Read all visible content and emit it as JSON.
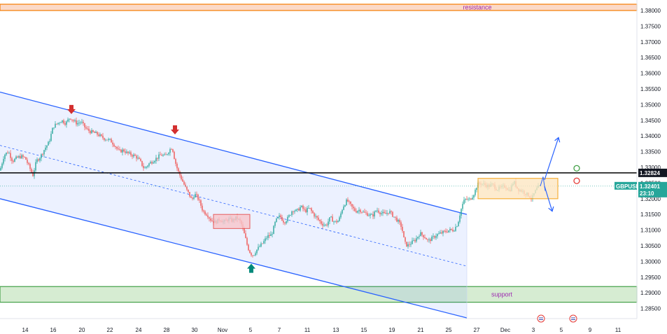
{
  "chart_data": {
    "type": "candlestick",
    "symbol": "GBPUSD",
    "ylim": [
      1.2835,
      1.3815
    ],
    "y_ticks": [
      "1.38000",
      "1.37500",
      "1.37000",
      "1.36500",
      "1.36000",
      "1.35500",
      "1.35000",
      "1.34500",
      "1.34000",
      "1.33500",
      "1.33000",
      "1.32500",
      "1.32000",
      "1.31500",
      "1.31000",
      "1.30500",
      "1.30000",
      "1.29500",
      "1.29000",
      "1.28500"
    ],
    "x_ticks": [
      "14",
      "16",
      "20",
      "22",
      "24",
      "28",
      "30",
      "Nov",
      "5",
      "7",
      "11",
      "13",
      "15",
      "19",
      "21",
      "25",
      "27",
      "Dec",
      "3",
      "5",
      "9",
      "11"
    ],
    "price_points": [
      [
        0,
        1.329
      ],
      [
        6,
        1.334
      ],
      [
        12,
        1.335
      ],
      [
        18,
        1.332
      ],
      [
        24,
        1.333
      ],
      [
        30,
        1.3335
      ],
      [
        36,
        1.333
      ],
      [
        42,
        1.33
      ],
      [
        47,
        1.3275
      ],
      [
        52,
        1.332
      ],
      [
        58,
        1.3335
      ],
      [
        64,
        1.336
      ],
      [
        70,
        1.338
      ],
      [
        76,
        1.343
      ],
      [
        82,
        1.344
      ],
      [
        88,
        1.345
      ],
      [
        94,
        1.344
      ],
      [
        100,
        1.346
      ],
      [
        104,
        1.345
      ],
      [
        110,
        1.344
      ],
      [
        116,
        1.3445
      ],
      [
        122,
        1.3425
      ],
      [
        128,
        1.3415
      ],
      [
        134,
        1.341
      ],
      [
        140,
        1.3405
      ],
      [
        146,
        1.3395
      ],
      [
        152,
        1.339
      ],
      [
        158,
        1.3385
      ],
      [
        164,
        1.337
      ],
      [
        170,
        1.335
      ],
      [
        176,
        1.3355
      ],
      [
        182,
        1.3345
      ],
      [
        188,
        1.334
      ],
      [
        194,
        1.3335
      ],
      [
        200,
        1.332
      ],
      [
        206,
        1.3295
      ],
      [
        212,
        1.331
      ],
      [
        218,
        1.332
      ],
      [
        224,
        1.333
      ],
      [
        230,
        1.334
      ],
      [
        236,
        1.3335
      ],
      [
        242,
        1.3355
      ],
      [
        246,
        1.3365
      ],
      [
        250,
        1.332
      ],
      [
        254,
        1.329
      ],
      [
        258,
        1.327
      ],
      [
        262,
        1.325
      ],
      [
        266,
        1.323
      ],
      [
        270,
        1.3215
      ],
      [
        274,
        1.3195
      ],
      [
        278,
        1.3215
      ],
      [
        282,
        1.3205
      ],
      [
        286,
        1.3185
      ],
      [
        290,
        1.316
      ],
      [
        296,
        1.315
      ],
      [
        302,
        1.313
      ],
      [
        308,
        1.3125
      ],
      [
        314,
        1.3135
      ],
      [
        320,
        1.3125
      ],
      [
        326,
        1.3135
      ],
      [
        332,
        1.313
      ],
      [
        338,
        1.314
      ],
      [
        344,
        1.3125
      ],
      [
        350,
        1.308
      ],
      [
        354,
        1.3045
      ],
      [
        358,
        1.3025
      ],
      [
        362,
        1.302
      ],
      [
        366,
        1.3035
      ],
      [
        370,
        1.3045
      ],
      [
        376,
        1.306
      ],
      [
        382,
        1.308
      ],
      [
        388,
        1.3085
      ],
      [
        394,
        1.313
      ],
      [
        400,
        1.3145
      ],
      [
        406,
        1.3125
      ],
      [
        412,
        1.314
      ],
      [
        418,
        1.3165
      ],
      [
        424,
        1.316
      ],
      [
        430,
        1.3175
      ],
      [
        436,
        1.316
      ],
      [
        442,
        1.317
      ],
      [
        448,
        1.315
      ],
      [
        454,
        1.3135
      ],
      [
        460,
        1.312
      ],
      [
        466,
        1.3115
      ],
      [
        472,
        1.314
      ],
      [
        478,
        1.3125
      ],
      [
        484,
        1.313
      ],
      [
        490,
        1.3175
      ],
      [
        496,
        1.3195
      ],
      [
        502,
        1.3175
      ],
      [
        508,
        1.316
      ],
      [
        514,
        1.3165
      ],
      [
        520,
        1.3155
      ],
      [
        526,
        1.315
      ],
      [
        532,
        1.3145
      ],
      [
        538,
        1.3165
      ],
      [
        544,
        1.3155
      ],
      [
        550,
        1.315
      ],
      [
        556,
        1.316
      ],
      [
        562,
        1.3145
      ],
      [
        568,
        1.313
      ],
      [
        574,
        1.311
      ],
      [
        578,
        1.306
      ],
      [
        582,
        1.305
      ],
      [
        588,
        1.306
      ],
      [
        594,
        1.307
      ],
      [
        600,
        1.309
      ],
      [
        606,
        1.308
      ],
      [
        612,
        1.3065
      ],
      [
        618,
        1.3075
      ],
      [
        624,
        1.3085
      ],
      [
        630,
        1.309
      ],
      [
        636,
        1.3095
      ],
      [
        642,
        1.31
      ],
      [
        648,
        1.31
      ],
      [
        654,
        1.312
      ],
      [
        658,
        1.316
      ],
      [
        662,
        1.319
      ],
      [
        666,
        1.32
      ],
      [
        670,
        1.3195
      ],
      [
        674,
        1.3205
      ],
      [
        678,
        1.322
      ],
      [
        682,
        1.3245
      ],
      [
        686,
        1.325
      ],
      [
        692,
        1.3245
      ],
      [
        698,
        1.324
      ],
      [
        704,
        1.3245
      ],
      [
        710,
        1.323
      ],
      [
        716,
        1.3235
      ],
      [
        722,
        1.324
      ],
      [
        728,
        1.3225
      ],
      [
        734,
        1.3255
      ],
      [
        740,
        1.323
      ],
      [
        746,
        1.3225
      ],
      [
        752,
        1.3215
      ],
      [
        756,
        1.321
      ],
      [
        760,
        1.32
      ],
      [
        764,
        1.322
      ],
      [
        768,
        1.3235
      ],
      [
        772,
        1.324
      ]
    ],
    "channel": {
      "upper": [
        [
          0,
          1.354
        ],
        [
          667,
          1.315
        ]
      ],
      "lower": [
        [
          0,
          1.32
        ],
        [
          667,
          1.282
        ]
      ],
      "mid": [
        [
          0,
          1.337
        ],
        [
          667,
          1.2985
        ]
      ]
    },
    "zones": [
      {
        "label": "resistance",
        "from": 1.38,
        "to": 1.382,
        "fill": "#fbd9c8",
        "border": "#f57c00",
        "text": "#9c27b0"
      },
      {
        "label": "support",
        "from": 1.287,
        "to": 1.292,
        "fill": "#d6ecd2",
        "border": "#43a047",
        "text": "#9c27b0"
      }
    ],
    "boxes": [
      {
        "name": "red-consolidation-box",
        "y_range": [
          1.3105,
          1.315
        ],
        "fill": "#f8c6cb",
        "border": "#e53935"
      },
      {
        "name": "orange-range-box",
        "y_range": [
          1.32,
          1.3265
        ],
        "fill": "#fde7c2",
        "border": "#f59e0b"
      }
    ],
    "levels": [
      {
        "value": 1.32824,
        "label": "1.32824",
        "color": "#000000"
      },
      {
        "value": 1.32401,
        "label": "1.32401",
        "sublabel": "23:10",
        "symbol": "GBPUSD",
        "color": "#26a69a"
      }
    ],
    "annotations": {
      "red_arrows": [
        [
          102,
          1.347
        ],
        [
          250,
          1.3405
        ]
      ],
      "green_arrow": [
        359,
        1.2995
      ],
      "projection_up": [
        [
          778,
          1.326
        ],
        [
          798,
          1.3395
        ]
      ],
      "projection_down": [
        [
          778,
          1.324
        ],
        [
          789,
          1.316
        ]
      ],
      "circles": [
        {
          "x": 824,
          "y": 1.3297,
          "color": "#43a047"
        },
        {
          "x": 824,
          "y": 1.3257,
          "color": "#e53935"
        }
      ]
    },
    "colors": {
      "up": "#26a69a",
      "down": "#ef5350",
      "channel": "#2962ff",
      "accent": "#26a69a"
    }
  }
}
